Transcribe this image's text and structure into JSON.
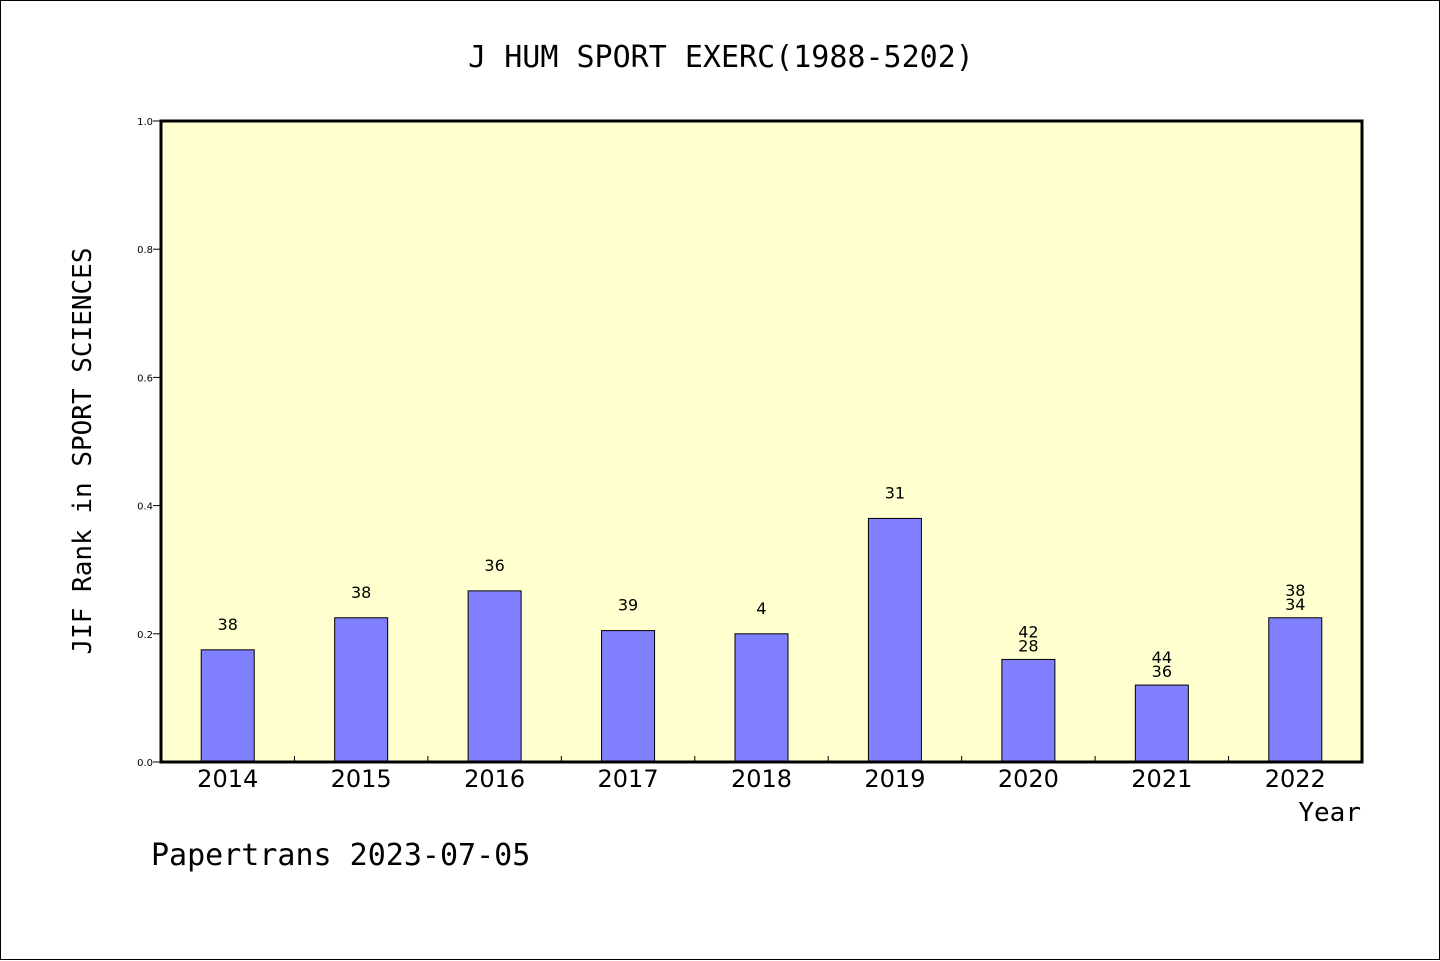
{
  "chart_data": {
    "type": "bar",
    "title": "J HUM SPORT EXERC(1988-5202)",
    "xlabel": "Year",
    "ylabel": "JIF Rank in SPORT SCIENCES",
    "ylim": [
      0.0,
      1.0
    ],
    "yticks": [
      "0.0",
      "0.2",
      "0.4",
      "0.6",
      "0.8",
      "1.0"
    ],
    "categories": [
      "2014",
      "2015",
      "2016",
      "2017",
      "2018",
      "2019",
      "2020",
      "2021",
      "2022"
    ],
    "values": [
      0.175,
      0.225,
      0.267,
      0.205,
      0.2,
      0.38,
      0.16,
      0.12,
      0.225
    ],
    "bar_labels": [
      [
        "38"
      ],
      [
        "38"
      ],
      [
        "36"
      ],
      [
        "39"
      ],
      [
        "4"
      ],
      [
        "31"
      ],
      [
        "42",
        "28"
      ],
      [
        "44",
        "36"
      ],
      [
        "38",
        "34"
      ]
    ],
    "bar_color": "#8080ff",
    "plot_background": "#ffffd0",
    "grid": false,
    "legend": "none"
  },
  "footer": {
    "text": "Papertrans 2023-07-05"
  }
}
